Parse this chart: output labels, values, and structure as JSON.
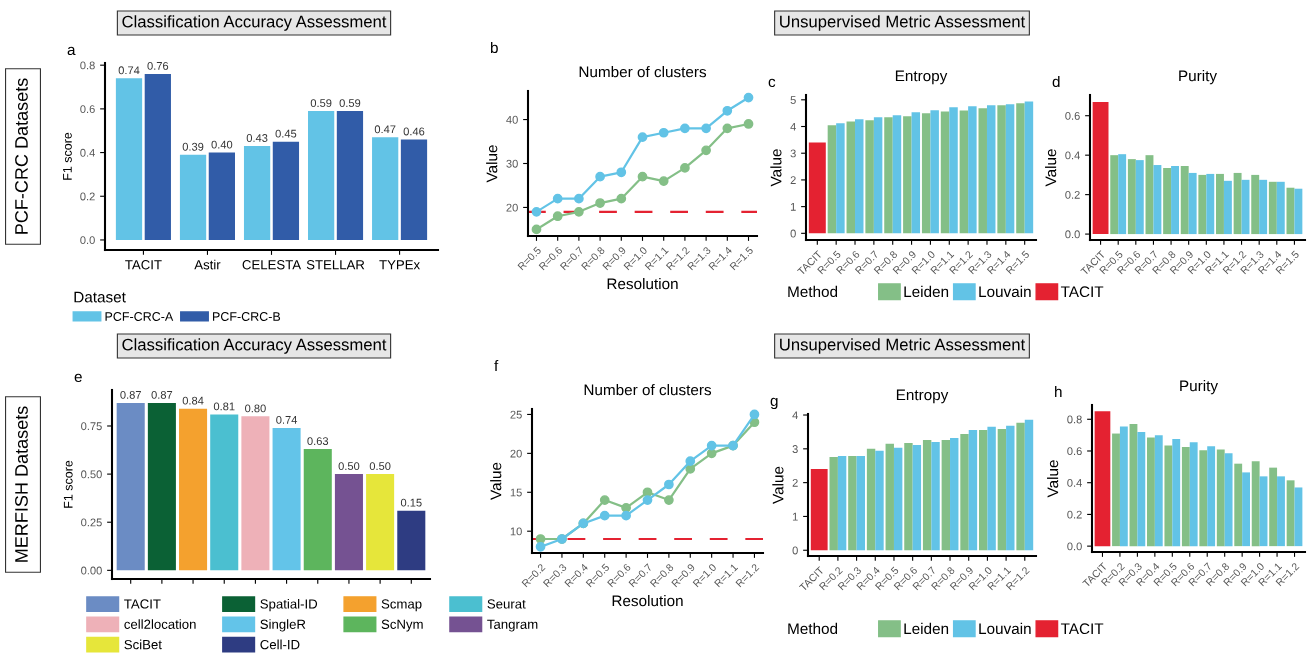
{
  "chart_data": [
    {
      "type": "bar",
      "ylabel": "F1 score",
      "legend_title": "Dataset",
      "legend": "bottom",
      "grid": false,
      "annotations": [
        "a",
        "Classification Accuracy Assessment",
        "PCF-CRC Datasets"
      ],
      "categories": [
        "TACIT",
        "Astir",
        "CELESTA",
        "STELLAR",
        "TYPEx"
      ],
      "series": [
        {
          "name": "PCF-CRC-A",
          "color": "#62c3e6",
          "values": [
            0.74,
            0.39,
            0.43,
            0.59,
            0.47
          ],
          "value_labels": [
            "0.74",
            "0.39",
            "0.43",
            "0.59",
            "0.47"
          ]
        },
        {
          "name": "PCF-CRC-B",
          "color": "#315ca8",
          "values": [
            0.76,
            0.4,
            0.45,
            0.59,
            0.46
          ],
          "value_labels": [
            "0.76",
            "0.40",
            "0.45",
            "0.59",
            "0.46"
          ]
        }
      ],
      "ylim": [
        -0.046,
        0.81
      ],
      "yticks": [
        {
          "value": 0,
          "label": "0.0"
        },
        {
          "value": 0.2,
          "label": "0.2"
        },
        {
          "value": 0.4,
          "label": "0.4"
        },
        {
          "value": 0.6,
          "label": "0.6"
        },
        {
          "value": 0.8,
          "label": "0.8"
        }
      ]
    },
    {
      "type": "line",
      "title": "Number of clusters",
      "xlabel": "Resolution",
      "ylabel": "Value",
      "grid": false,
      "marker": "circle",
      "line_style": "solid",
      "annotations": [
        "b",
        "Unsupervised Metric Assessment"
      ],
      "categories": [
        "R=0.5",
        "R=0.6",
        "R=0.7",
        "R=0.8",
        "R=0.9",
        "R=1.0",
        "R=1.1",
        "R=1.2",
        "R=1.3",
        "R=1.4",
        "R=1.5"
      ],
      "series": [
        {
          "color": "#84bf87",
          "values": [
            15,
            18,
            19,
            21,
            22,
            27,
            26,
            29,
            33,
            38,
            39
          ]
        },
        {
          "color": "#62c3e6",
          "values": [
            19,
            22,
            22,
            27,
            28,
            36,
            37,
            38,
            38,
            42,
            45
          ]
        }
      ],
      "ref_lines": [
        {
          "axis": "y",
          "value": 19,
          "color": "#e42231",
          "line_style": "dashed"
        }
      ],
      "ylim": [
        13.5,
        46.5
      ],
      "yticks": [
        20,
        30,
        40
      ]
    },
    {
      "type": "bar",
      "title": "Entropy",
      "ylabel": "Value",
      "legend_title": "Method",
      "legend": "bottom",
      "grid": false,
      "annotations": [
        "c"
      ],
      "categories": [
        "TACIT",
        "R=0.5",
        "R=0.6",
        "R=0.7",
        "R=0.8",
        "R=0.9",
        "R=1.0",
        "R=1.1",
        "R=1.2",
        "R=1.3",
        "R=1.4",
        "R=1.5"
      ],
      "series": [
        {
          "name": "Leiden",
          "color": "#84bf87",
          "values": [
            null,
            4.05,
            4.19,
            4.23,
            4.35,
            4.38,
            4.5,
            4.56,
            4.6,
            4.68,
            4.8,
            4.87
          ]
        },
        {
          "name": "Louvain",
          "color": "#62c3e6",
          "values": [
            null,
            4.12,
            4.27,
            4.35,
            4.42,
            4.53,
            4.61,
            4.72,
            4.76,
            4.8,
            4.83,
            4.94
          ]
        },
        {
          "name": "TACIT",
          "color": "#e42231",
          "values": [
            3.4,
            null,
            null,
            null,
            null,
            null,
            null,
            null,
            null,
            null,
            null,
            null
          ]
        }
      ],
      "ylim": [
        -0.25,
        5.18
      ],
      "yticks": [
        0,
        1,
        2,
        3,
        4,
        5
      ]
    },
    {
      "type": "bar",
      "title": "Purity",
      "ylabel": "Value",
      "grid": false,
      "annotations": [
        "d"
      ],
      "categories": [
        "TACIT",
        "R=0.5",
        "R=0.6",
        "R=0.7",
        "R=0.8",
        "R=0.9",
        "R=1.0",
        "R=1.1",
        "R=1.2",
        "R=1.3",
        "R=1.4",
        "R=1.5"
      ],
      "series": [
        {
          "color": "#84bf87",
          "values": [
            null,
            0.4,
            0.38,
            0.4,
            0.335,
            0.345,
            0.3,
            0.305,
            0.31,
            0.3,
            0.265,
            0.235
          ]
        },
        {
          "color": "#62c3e6",
          "values": [
            null,
            0.405,
            0.375,
            0.35,
            0.345,
            0.31,
            0.305,
            0.27,
            0.275,
            0.275,
            0.265,
            0.23
          ]
        },
        {
          "color": "#e42231",
          "values": [
            0.67,
            null,
            null,
            null,
            null,
            null,
            null,
            null,
            null,
            null,
            null,
            null
          ]
        }
      ],
      "ylim": [
        -0.03,
        0.705
      ],
      "yticks": [
        {
          "value": 0,
          "label": "0.0"
        },
        {
          "value": 0.2,
          "label": "0.2"
        },
        {
          "value": 0.4,
          "label": "0.4"
        },
        {
          "value": 0.6,
          "label": "0.6"
        }
      ]
    },
    {
      "type": "bar",
      "ylabel": "F1 score",
      "legend": "bottom",
      "grid": false,
      "annotations": [
        "e",
        "Classification Accuracy Assessment",
        "MERFISH Datasets",
        {
          "text": "0.15",
          "y": 0.31
        }
      ],
      "categories": [
        null,
        null,
        null,
        null,
        null,
        null,
        null,
        null,
        null,
        null
      ],
      "series": [
        {
          "name": "TACIT",
          "color": "#6b8cc4",
          "values": [
            0.87,
            null,
            null,
            null,
            null,
            null,
            null,
            null,
            null,
            null
          ],
          "value_labels": [
            "0.87",
            null,
            null,
            null,
            null,
            null,
            null,
            null,
            null,
            null
          ]
        },
        {
          "name": "Spatial-ID",
          "color": "#0b6135",
          "values": [
            null,
            0.87,
            null,
            null,
            null,
            null,
            null,
            null,
            null,
            null
          ],
          "value_labels": [
            null,
            "0.87",
            null,
            null,
            null,
            null,
            null,
            null,
            null,
            null
          ]
        },
        {
          "name": "Scmap",
          "color": "#f4a12e",
          "values": [
            null,
            null,
            0.84,
            null,
            null,
            null,
            null,
            null,
            null,
            null
          ],
          "value_labels": [
            null,
            null,
            "0.84",
            null,
            null,
            null,
            null,
            null,
            null,
            null
          ]
        },
        {
          "name": "Seurat",
          "color": "#4bbfd0",
          "values": [
            null,
            null,
            null,
            0.81,
            null,
            null,
            null,
            null,
            null,
            null
          ],
          "value_labels": [
            null,
            null,
            null,
            "0.81",
            null,
            null,
            null,
            null,
            null,
            null
          ]
        },
        {
          "name": "cell2location",
          "color": "#eeb1b8",
          "values": [
            null,
            null,
            null,
            null,
            0.8,
            null,
            null,
            null,
            null,
            null
          ],
          "value_labels": [
            null,
            null,
            null,
            null,
            "0.80",
            null,
            null,
            null,
            null,
            null
          ]
        },
        {
          "name": "SingleR",
          "color": "#63c4e9",
          "values": [
            null,
            null,
            null,
            null,
            null,
            0.74,
            null,
            null,
            null,
            null
          ],
          "value_labels": [
            null,
            null,
            null,
            null,
            null,
            "0.74",
            null,
            null,
            null,
            null
          ]
        },
        {
          "name": "ScNym",
          "color": "#5db55d",
          "values": [
            null,
            null,
            null,
            null,
            null,
            null,
            0.63,
            null,
            null,
            null
          ],
          "value_labels": [
            null,
            null,
            null,
            null,
            null,
            null,
            "0.63",
            null,
            null,
            null
          ]
        },
        {
          "name": "Tangram",
          "color": "#755292",
          "values": [
            null,
            null,
            null,
            null,
            null,
            null,
            null,
            0.5,
            null,
            null
          ],
          "value_labels": [
            null,
            null,
            null,
            null,
            null,
            null,
            null,
            "0.50",
            null,
            null
          ]
        },
        {
          "name": "SciBet",
          "color": "#e6e63a",
          "values": [
            null,
            null,
            null,
            null,
            null,
            null,
            null,
            null,
            0.5,
            null
          ],
          "value_labels": [
            null,
            null,
            null,
            null,
            null,
            null,
            null,
            null,
            "0.50",
            null
          ]
        },
        {
          "name": "Cell-ID",
          "color": "#2e3c82",
          "values": [
            null,
            null,
            null,
            null,
            null,
            null,
            null,
            null,
            null,
            0.31
          ]
        }
      ],
      "ylim": [
        -0.045,
        0.937
      ],
      "yticks": [
        {
          "value": 0,
          "label": "0.00"
        },
        {
          "value": 0.25,
          "label": "0.25"
        },
        {
          "value": 0.5,
          "label": "0.50"
        },
        {
          "value": 0.75,
          "label": "0.75"
        }
      ]
    },
    {
      "type": "line",
      "title": "Number of clusters",
      "xlabel": "Resolution",
      "ylabel": "Value",
      "grid": false,
      "marker": "circle",
      "line_style": "solid",
      "annotations": [
        "f",
        "Unsupervised Metric Assessment"
      ],
      "categories": [
        "R=0.2",
        "R=0.3",
        "R=0.4",
        "R=0.5",
        "R=0.6",
        "R=0.7",
        "R=0.8",
        "R=0.9",
        "R=1.0",
        "R=1.1",
        "R=1.2"
      ],
      "series": [
        {
          "color": "#84bf87",
          "values": [
            9,
            9,
            11,
            14,
            13,
            15,
            14,
            18,
            20,
            21,
            24
          ]
        },
        {
          "color": "#62c3e6",
          "values": [
            8,
            9,
            11,
            12,
            12,
            14,
            16,
            19,
            21,
            21,
            25
          ]
        }
      ],
      "ref_lines": [
        {
          "axis": "y",
          "value": 9,
          "color": "#e42231",
          "line_style": "dashed"
        }
      ],
      "ylim": [
        7.2,
        25.7
      ],
      "yticks": [
        10,
        15,
        20,
        25
      ]
    },
    {
      "type": "bar",
      "title": "Entropy",
      "ylabel": "Value",
      "legend_title": "Method",
      "legend": "bottom",
      "grid": false,
      "annotations": [
        "g"
      ],
      "categories": [
        "TACIT",
        "R=0.2",
        "R=0.3",
        "R=0.4",
        "R=0.5",
        "R=0.6",
        "R=0.7",
        "R=0.8",
        "R=0.9",
        "R=1.0",
        "R=1.1",
        "R=1.2"
      ],
      "series": [
        {
          "name": "Leiden",
          "color": "#84bf87",
          "values": [
            null,
            2.76,
            2.79,
            3.0,
            3.15,
            3.17,
            3.26,
            3.26,
            3.44,
            3.56,
            3.59,
            3.77
          ]
        },
        {
          "name": "Louvain",
          "color": "#62c3e6",
          "values": [
            null,
            2.79,
            2.79,
            2.94,
            3.03,
            3.11,
            3.2,
            3.32,
            3.56,
            3.65,
            3.68,
            3.86
          ]
        },
        {
          "name": "TACIT",
          "color": "#e42231",
          "values": [
            2.4,
            null,
            null,
            null,
            null,
            null,
            null,
            null,
            null,
            null,
            null,
            null
          ]
        }
      ],
      "ylim": [
        -0.17,
        4.03
      ],
      "yticks": [
        0,
        1,
        2,
        3,
        4
      ]
    },
    {
      "type": "bar",
      "title": "Purity",
      "ylabel": "Value",
      "grid": false,
      "annotations": [
        "h"
      ],
      "categories": [
        "TACIT",
        "R=0.2",
        "R=0.3",
        "R=0.4",
        "R=0.5",
        "R=0.6",
        "R=0.7",
        "R=0.8",
        "R=0.9",
        "R=1.0",
        "R=1.1",
        "R=1.2"
      ],
      "series": [
        {
          "color": "#84bf87",
          "values": [
            null,
            0.71,
            0.77,
            0.685,
            0.635,
            0.625,
            0.605,
            0.61,
            0.52,
            0.535,
            0.495,
            0.415
          ]
        },
        {
          "color": "#62c3e6",
          "values": [
            null,
            0.755,
            0.72,
            0.7,
            0.675,
            0.655,
            0.63,
            0.585,
            0.465,
            0.44,
            0.44,
            0.37
          ]
        },
        {
          "color": "#e42231",
          "values": [
            0.85,
            null,
            null,
            null,
            null,
            null,
            null,
            null,
            null,
            null,
            null,
            null
          ]
        }
      ],
      "ylim": [
        -0.037,
        0.89
      ],
      "yticks": [
        {
          "value": 0,
          "label": "0.0"
        },
        {
          "value": 0.2,
          "label": "0.2"
        },
        {
          "value": 0.4,
          "label": "0.4"
        },
        {
          "value": 0.6,
          "label": "0.6"
        },
        {
          "value": 0.8,
          "label": "0.8"
        }
      ]
    }
  ]
}
